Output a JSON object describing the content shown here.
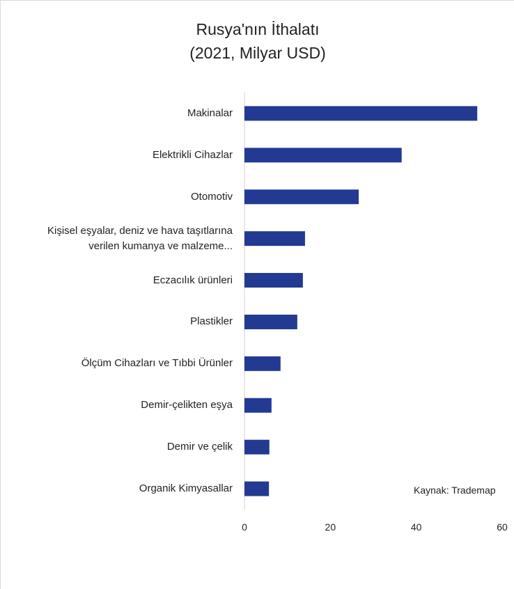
{
  "chart_data": {
    "type": "bar",
    "orientation": "horizontal",
    "title": "Rusya'nın İthalatı",
    "subtitle": "(2021, Milyar USD)",
    "categories": [
      "Makinalar",
      "Elektrikli Cihazlar",
      "Otomotiv",
      "Kişisel eşyalar, deniz ve hava taşıtlarına\nverilen kumanya ve malzeme...",
      "Eczacılık ürünleri",
      "Plastikler",
      "Ölçüm Cihazları ve Tıbbi Ürünler",
      "Demir-çelikten eşya",
      "Demir ve çelik",
      "Organik Kimyasallar"
    ],
    "values": [
      54.2,
      36.6,
      26.6,
      14.1,
      13.6,
      12.3,
      8.4,
      6.3,
      5.8,
      5.7
    ],
    "color": "#233a92",
    "xlim": [
      0,
      60
    ],
    "xticks": [
      0,
      20,
      40,
      60
    ],
    "grid": false,
    "annotation": "Kaynak: Trademap"
  }
}
